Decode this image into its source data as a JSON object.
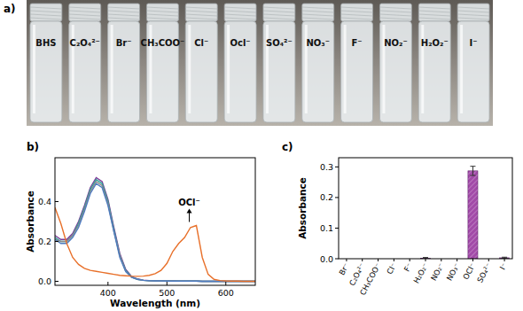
{
  "photo": {
    "title": "a)",
    "labels": [
      "BHS",
      "C₂O₄²⁻",
      "Br⁻",
      "CH₃COO⁻",
      "Cl⁻",
      "Ocl⁻",
      "SO₄²⁻",
      "NO₃⁻",
      "F⁻",
      "NO₂⁻",
      "H₂O₂⁻",
      "I⁻"
    ]
  },
  "chart_data": [
    {
      "type": "line",
      "title": "b)",
      "x_label": "Wavelength (nm)",
      "y_label": "Absorbance",
      "annotations": [
        "OCl⁻"
      ],
      "x": [
        310,
        320,
        330,
        340,
        350,
        360,
        370,
        380,
        390,
        400,
        410,
        420,
        430,
        440,
        450,
        460,
        470,
        480,
        490,
        500,
        510,
        520,
        530,
        540,
        550,
        560,
        570,
        580,
        590,
        600,
        610,
        620,
        630,
        640,
        650
      ],
      "xlim": [
        310,
        650
      ],
      "xticks": [
        400,
        500,
        600
      ],
      "ylim": [
        -0.02,
        0.62
      ],
      "yticks": [
        {
          "value": 0,
          "label": "0.0"
        },
        {
          "value": 0.2,
          "label": "0.2"
        },
        {
          "value": 0.4,
          "label": "0.4"
        }
      ],
      "series": [
        {
          "color": "#7b3f98",
          "values": [
            0.23,
            0.21,
            0.21,
            0.24,
            0.3,
            0.38,
            0.47,
            0.52,
            0.5,
            0.41,
            0.27,
            0.14,
            0.06,
            0.025,
            0.012,
            0.006,
            0.004,
            0.003,
            0.002,
            0.002,
            0.002,
            0.001,
            0.001,
            0.001,
            0.001,
            0,
            0,
            0,
            0,
            0,
            0,
            0,
            0,
            0,
            0
          ]
        },
        {
          "color": "#2aa198",
          "values": [
            0.22,
            0.2,
            0.2,
            0.23,
            0.29,
            0.37,
            0.46,
            0.51,
            0.49,
            0.4,
            0.26,
            0.13,
            0.055,
            0.022,
            0.01,
            0.005,
            0.003,
            0.002,
            0.002,
            0.001,
            0.001,
            0.001,
            0.001,
            0.001,
            0.001,
            0,
            0,
            0,
            0,
            0,
            0,
            0,
            0,
            0,
            0
          ]
        },
        {
          "color": "#8a8a8a",
          "values": [
            0.21,
            0.2,
            0.2,
            0.23,
            0.28,
            0.36,
            0.45,
            0.5,
            0.48,
            0.39,
            0.25,
            0.13,
            0.05,
            0.02,
            0.01,
            0.005,
            0.003,
            0.002,
            0.002,
            0.001,
            0.001,
            0.001,
            0.001,
            0.001,
            0.001,
            0,
            0,
            0,
            0,
            0,
            0,
            0,
            0,
            0,
            0
          ]
        },
        {
          "color": "#4f7cc0",
          "values": [
            0.21,
            0.19,
            0.19,
            0.22,
            0.27,
            0.35,
            0.44,
            0.49,
            0.47,
            0.38,
            0.25,
            0.12,
            0.05,
            0.02,
            0.01,
            0.005,
            0.003,
            0.002,
            0.002,
            0.001,
            0.001,
            0.001,
            0.001,
            0.001,
            0.001,
            0,
            0,
            0,
            0,
            0,
            0,
            0,
            0,
            0,
            0
          ]
        },
        {
          "color": "#e8702a",
          "values": [
            0.37,
            0.29,
            0.19,
            0.12,
            0.085,
            0.065,
            0.055,
            0.05,
            0.045,
            0.04,
            0.035,
            0.03,
            0.028,
            0.026,
            0.025,
            0.026,
            0.03,
            0.038,
            0.055,
            0.09,
            0.15,
            0.19,
            0.22,
            0.27,
            0.28,
            0.12,
            0.035,
            0.01,
            0.004,
            0.002,
            0.001,
            0.001,
            0,
            0,
            0
          ]
        }
      ]
    },
    {
      "type": "bar",
      "title": "c)",
      "y_label": "Absorbance",
      "color": "#a24aa8",
      "categories": [
        "Br⁻",
        "C₂O₄²⁻",
        "CH₃COO⁻",
        "Cl⁻",
        "F⁻",
        "H₂O₂⁻",
        "NO₂⁻",
        "NO₃⁻",
        "OCl⁻",
        "SO₄²⁻",
        "I⁻"
      ],
      "values": [
        0,
        0,
        0,
        0,
        0,
        0.002,
        0,
        0,
        0.287,
        0,
        0.003
      ],
      "errors": [
        0,
        0,
        0,
        0,
        0,
        0.002,
        0,
        0,
        0.015,
        0,
        0.002
      ],
      "ylim": [
        0,
        0.33
      ],
      "yticks": [
        {
          "value": 0,
          "label": "0.0"
        },
        {
          "value": 0.1,
          "label": "0.1"
        },
        {
          "value": 0.2,
          "label": "0.2"
        },
        {
          "value": 0.3,
          "label": "0.3"
        }
      ]
    }
  ]
}
